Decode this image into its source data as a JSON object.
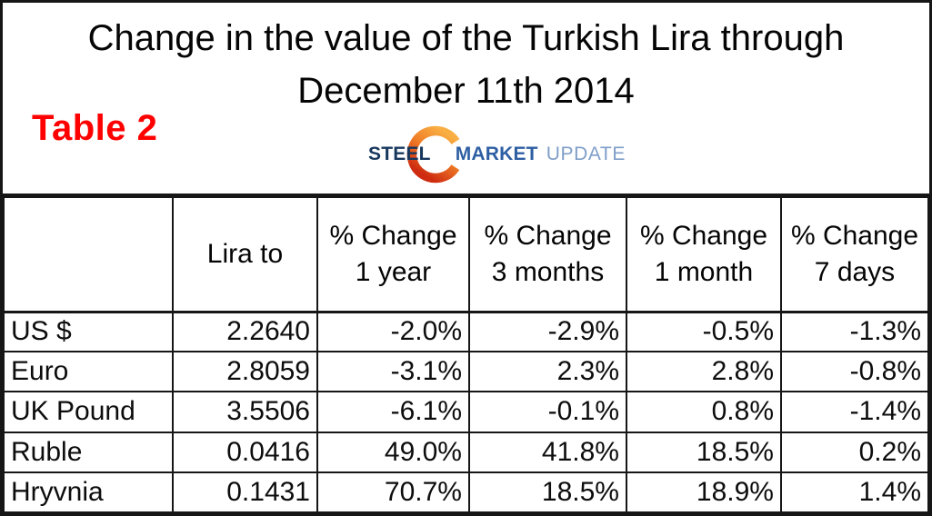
{
  "header": {
    "title_line1": "Change in the value of the Turkish Lira through",
    "title_line2": "December 11th 2014",
    "table_label": "Table 2",
    "logo": {
      "word1": "STEEL",
      "word2": "MARKET",
      "word3": "UPDATE",
      "icon": "orange-crescent",
      "colors": {
        "steel": "#17375D",
        "market": "#2E5FA3",
        "update": "#7F9EC9",
        "crescent_top": "#F9AE43",
        "crescent_bottom": "#CE2B10"
      }
    }
  },
  "table": {
    "columns": [
      "",
      "Lira to",
      "% Change\n1 year",
      "% Change\n3 months",
      "% Change\n1 month",
      "% Change\n7 days"
    ],
    "rows": [
      {
        "cells": [
          "US $",
          "2.2640",
          "-2.0%",
          "-2.9%",
          "-0.5%",
          "-1.3%"
        ]
      },
      {
        "cells": [
          "Euro",
          "2.8059",
          "-3.1%",
          "2.3%",
          "2.8%",
          "-0.8%"
        ]
      },
      {
        "cells": [
          "UK Pound",
          "3.5506",
          "-6.1%",
          "-0.1%",
          "0.8%",
          "-1.4%"
        ]
      },
      {
        "cells": [
          "Ruble",
          "0.0416",
          "49.0%",
          "41.8%",
          "18.5%",
          "0.2%"
        ]
      },
      {
        "cells": [
          "Hryvnia",
          "0.1431",
          "70.7%",
          "18.5%",
          "18.9%",
          "1.4%"
        ]
      }
    ],
    "accent_colors": {
      "label_red": "#FF0000",
      "border": "#161616",
      "text": "#0D0D0D"
    }
  },
  "chart_data": {
    "type": "table",
    "title": "Change in the value of the Turkish Lira through December 11th 2014",
    "label": "Table 2",
    "columns": [
      "",
      "Lira to",
      "% Change 1 year",
      "% Change 3 months",
      "% Change 1 month",
      "% Change 7 days"
    ],
    "units": {
      "lira_to": "Lira per unit of currency",
      "changes": "%"
    },
    "rows": [
      {
        "currency": "US $",
        "lira_to": 2.264,
        "change_1_year": -2.0,
        "change_3_months": -2.9,
        "change_1_month": -0.5,
        "change_7_days": -1.3
      },
      {
        "currency": "Euro",
        "lira_to": 2.8059,
        "change_1_year": -3.1,
        "change_3_months": 2.3,
        "change_1_month": 2.8,
        "change_7_days": -0.8
      },
      {
        "currency": "UK Pound",
        "lira_to": 3.5506,
        "change_1_year": -6.1,
        "change_3_months": -0.1,
        "change_1_month": 0.8,
        "change_7_days": -1.4
      },
      {
        "currency": "Ruble",
        "lira_to": 0.0416,
        "change_1_year": 49.0,
        "change_3_months": 41.8,
        "change_1_month": 18.5,
        "change_7_days": 0.2
      },
      {
        "currency": "Hryvnia",
        "lira_to": 0.1431,
        "change_1_year": 70.7,
        "change_3_months": 18.5,
        "change_1_month": 18.9,
        "change_7_days": 1.4
      }
    ]
  }
}
